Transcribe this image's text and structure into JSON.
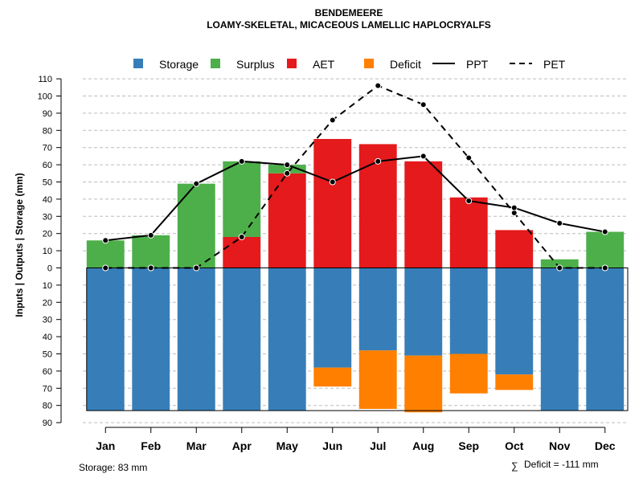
{
  "chart_data": {
    "type": "bar",
    "title": "BENDEMEERE",
    "subtitle": "LOAMY-SKELETAL, MICACEOUS LAMELLIC HAPLOCRYALFS",
    "ylabel": "Inputs | Outputs | Storage    (mm)",
    "categories": [
      "Jan",
      "Feb",
      "Mar",
      "Apr",
      "May",
      "Jun",
      "Jul",
      "Aug",
      "Sep",
      "Oct",
      "Nov",
      "Dec"
    ],
    "ylim_positive": [
      0,
      110
    ],
    "ylim_negative": [
      0,
      90
    ],
    "yticks_positive": [
      "110",
      "100",
      "90",
      "80",
      "70",
      "60",
      "50",
      "40",
      "30",
      "20",
      "10",
      "0"
    ],
    "yticks_negative": [
      "10",
      "20",
      "30",
      "40",
      "50",
      "60",
      "70",
      "80",
      "90"
    ],
    "colors": {
      "storage": "#377EB8",
      "surplus": "#4DAF4A",
      "aet": "#E41A1C",
      "deficit": "#FF7F00"
    },
    "legend": {
      "storage": "Storage",
      "surplus": "Surplus",
      "aet": "AET",
      "deficit": "Deficit",
      "ppt": "PPT",
      "pet": "PET"
    },
    "series": [
      {
        "name": "Storage",
        "values": [
          83,
          83,
          83,
          83,
          83,
          58,
          48,
          51,
          50,
          62,
          83,
          83
        ]
      },
      {
        "name": "Surplus",
        "values": [
          16,
          19,
          49,
          44,
          5,
          0,
          0,
          0,
          0,
          0,
          5,
          21
        ]
      },
      {
        "name": "AET",
        "values": [
          0,
          0,
          0,
          18,
          55,
          75,
          72,
          62,
          41,
          22,
          0,
          0
        ]
      },
      {
        "name": "Deficit",
        "values": [
          0,
          0,
          0,
          0,
          0,
          11,
          34,
          33,
          23,
          9,
          0,
          0
        ]
      },
      {
        "name": "PPT",
        "values": [
          16,
          19,
          49,
          62,
          60,
          50,
          62,
          65,
          39,
          35,
          26,
          21
        ]
      },
      {
        "name": "PET",
        "values": [
          0,
          0,
          0,
          18,
          55,
          86,
          106,
          95,
          64,
          32,
          0,
          0
        ]
      }
    ],
    "storage_note": "Storage: 83 mm",
    "deficit_note": "Deficit = -111 mm",
    "deficit_symbol": "∑"
  }
}
